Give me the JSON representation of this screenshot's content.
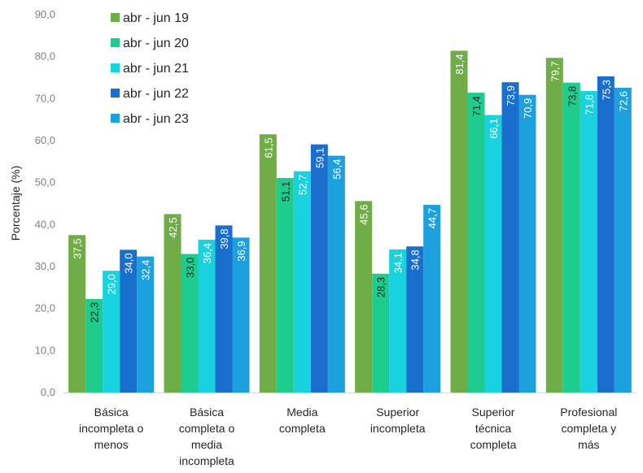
{
  "chart_data": {
    "type": "bar",
    "ylabel": "Porcentaje (%)",
    "ylim": [
      0,
      90
    ],
    "ytick_step": 10,
    "ytick_labels": [
      "0,0",
      "10,0",
      "20,0",
      "30,0",
      "40,0",
      "50,0",
      "60,0",
      "70,0",
      "80,0",
      "90,0"
    ],
    "grid": false,
    "legend_position": "top-left",
    "categories": [
      [
        "Básica",
        "incompleta o",
        "menos"
      ],
      [
        "Básica",
        "completa o",
        "media",
        "incompleta"
      ],
      [
        "Media",
        "completa"
      ],
      [
        "Superior",
        "incompleta"
      ],
      [
        "Superior",
        "técnica",
        "completa"
      ],
      [
        "Profesional",
        "completa y",
        "más"
      ]
    ],
    "series": [
      {
        "name": "abr - jun 19",
        "color": "#70AD47",
        "values": [
          37.5,
          42.5,
          61.5,
          45.6,
          81.4,
          79.7
        ],
        "labels": [
          "37,5",
          "42,5",
          "61,5",
          "45,6",
          "81,4",
          "79,7"
        ]
      },
      {
        "name": "abr - jun 20",
        "color": "#1ECC8E",
        "values": [
          22.3,
          33.0,
          51.1,
          28.3,
          71.4,
          73.8
        ],
        "labels": [
          "22,3",
          "33,0",
          "51,1",
          "28,3",
          "71,4",
          "73,8"
        ]
      },
      {
        "name": "abr - jun 21",
        "color": "#19D2DF",
        "values": [
          29.0,
          36.4,
          52.7,
          34.1,
          66.1,
          71.8
        ],
        "labels": [
          "29,0",
          "36,4",
          "52,7",
          "34,1",
          "66,1",
          "71,8"
        ]
      },
      {
        "name": "abr - jun 22",
        "color": "#1A6FCC",
        "values": [
          34.0,
          39.8,
          59.1,
          34.8,
          73.9,
          75.3
        ],
        "labels": [
          "34,0",
          "39,8",
          "59,1",
          "34,8",
          "73,9",
          "75,3"
        ]
      },
      {
        "name": "abr - jun 23",
        "color": "#1CA1DE",
        "values": [
          32.4,
          36.9,
          56.4,
          44.7,
          70.9,
          72.6
        ],
        "labels": [
          "32,4",
          "36,9",
          "56,4",
          "44,7",
          "70,9",
          "72,6"
        ]
      }
    ]
  }
}
